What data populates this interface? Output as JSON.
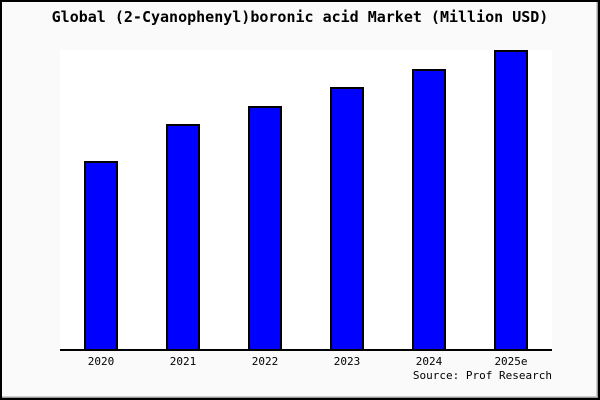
{
  "colors": {
    "bar_fill": "#0000ff",
    "bar_border": "#000000",
    "frame_border": "#000000",
    "outer_background": "#fafafa",
    "plot_background": "#ffffff",
    "axis_line": "#000000",
    "text": "#000000"
  },
  "source_label": "Source: Prof Research",
  "chart_data": {
    "type": "bar",
    "title": "Global (2-Cyanophenyl)boronic acid Market (Million USD)",
    "categories": [
      "2020",
      "2021",
      "2022",
      "2023",
      "2024",
      "2025e"
    ],
    "values": [
      62.8,
      75.1,
      81.4,
      87.7,
      93.7,
      100
    ],
    "value_note": "No y-axis, gridlines or data labels are shown in the image; values are relative bar heights normalized so the tallest bar (2025e) = 100",
    "xlabel": "",
    "ylabel": "",
    "ylim": [
      0,
      100
    ],
    "grid": false,
    "legend": false,
    "bar_color": "#0000ff",
    "source": "Source: Prof Research"
  }
}
